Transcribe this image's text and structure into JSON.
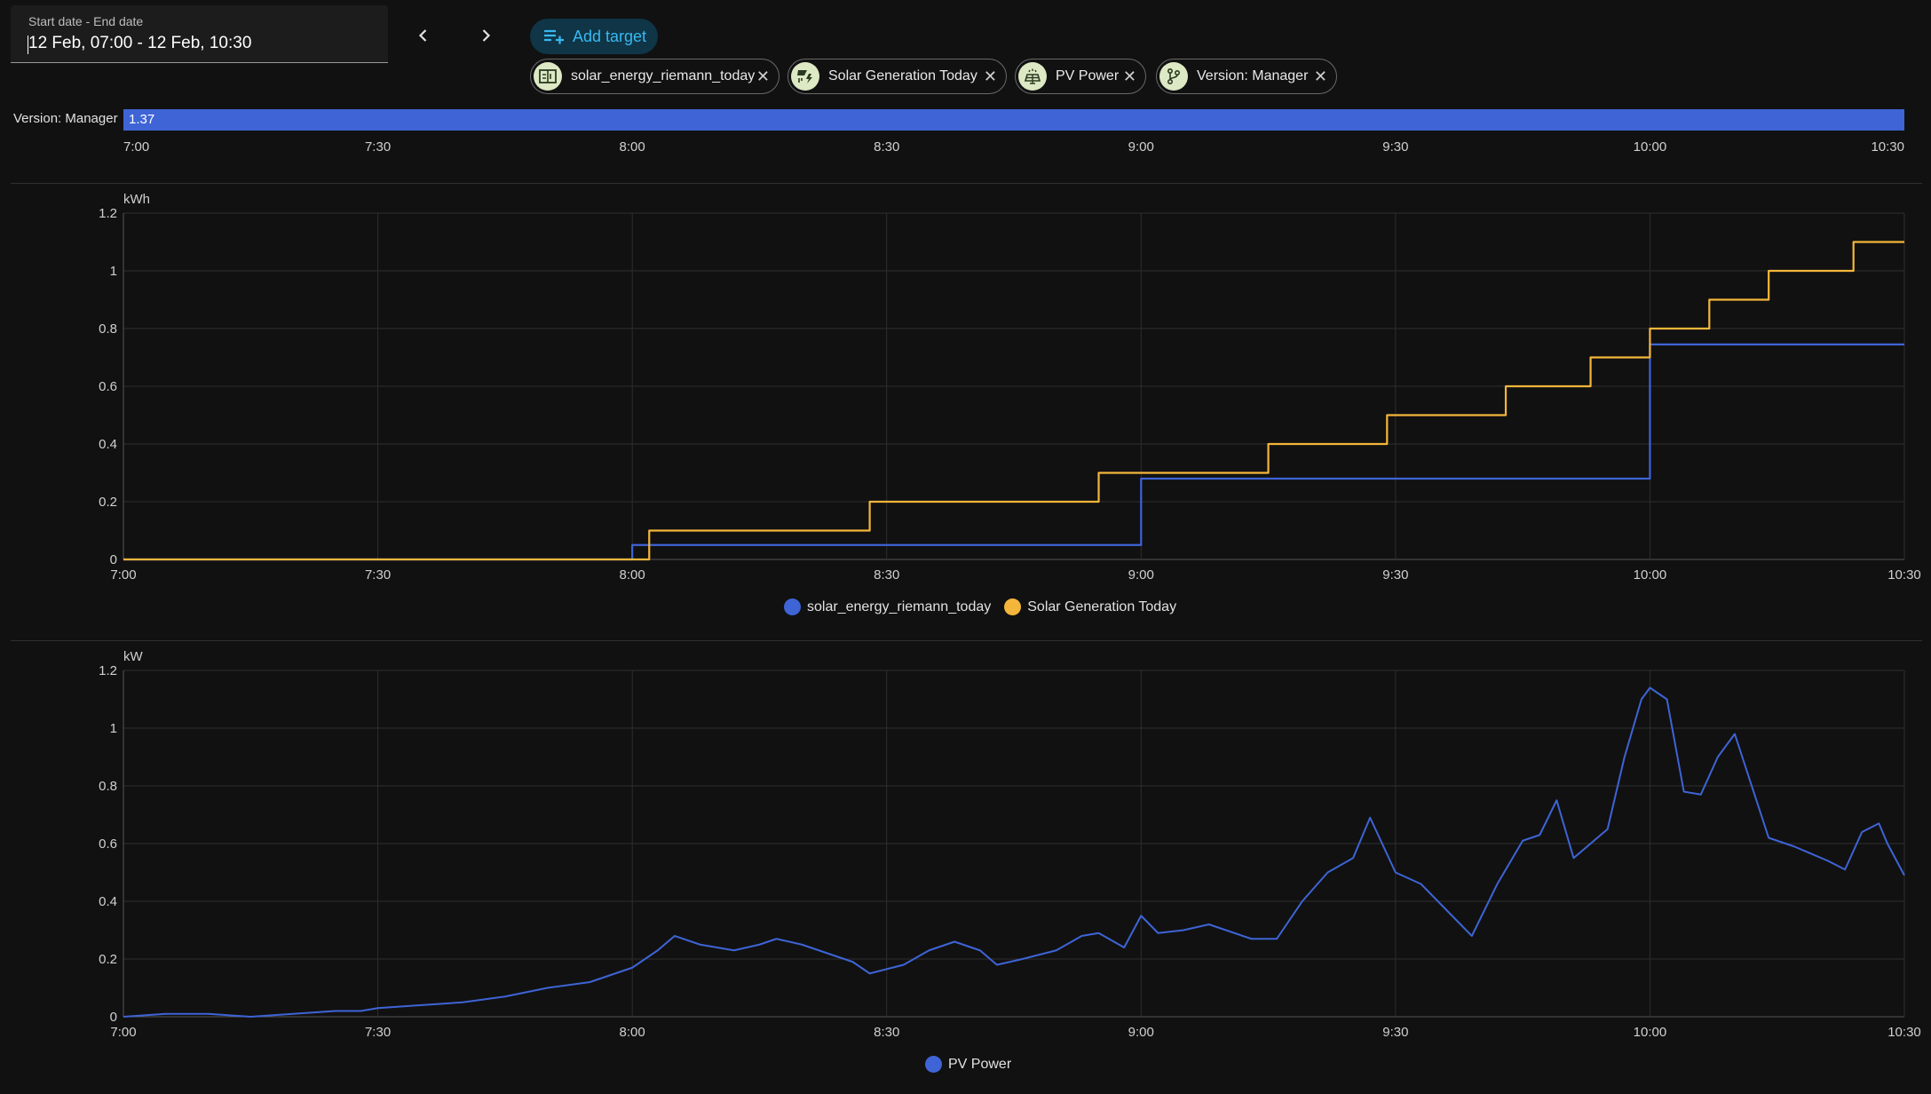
{
  "date_picker": {
    "label": "Start date - End date",
    "value": "12 Feb, 07:00 - 12 Feb, 10:30"
  },
  "toolbar": {
    "add_target_label": "Add target",
    "prev_icon": "chevron-left-icon",
    "next_icon": "chevron-right-icon"
  },
  "targets": [
    {
      "label": "solar_energy_riemann_today",
      "icon": "meter-icon"
    },
    {
      "label": "Solar Generation Today",
      "icon": "solar-power-icon"
    },
    {
      "label": "PV Power",
      "icon": "solar-panel-icon"
    },
    {
      "label": "Version: Manager",
      "icon": "branch-icon"
    }
  ],
  "timeline": {
    "label": "Version: Manager",
    "value": "1.37",
    "color": "#3e64d6",
    "ticks": [
      "7:00",
      "7:30",
      "8:00",
      "8:30",
      "9:00",
      "9:30",
      "10:00",
      "10:30"
    ]
  },
  "colors": {
    "blue": "#3e64d6",
    "yellow": "#f4b63a",
    "accent": "#38b9f0"
  },
  "chart_data": [
    {
      "type": "line",
      "step": true,
      "unit": "kWh",
      "xlim": [
        "7:00",
        "10:30"
      ],
      "ylim": [
        0,
        1.2
      ],
      "x_ticks": [
        "7:00",
        "7:30",
        "8:00",
        "8:30",
        "9:00",
        "9:30",
        "10:00",
        "10:30"
      ],
      "y_ticks": [
        "0",
        "0.2",
        "0.4",
        "0.6",
        "0.8",
        "1",
        "1.2"
      ],
      "grid": true,
      "legend_position": "bottom",
      "series": [
        {
          "name": "solar_energy_riemann_today",
          "color": "#3e64d6",
          "points": [
            [
              "7:00",
              0
            ],
            [
              "8:00",
              0.05
            ],
            [
              "9:00",
              0.28
            ],
            [
              "10:00",
              0.745
            ],
            [
              "10:30",
              0.745
            ]
          ]
        },
        {
          "name": "Solar Generation Today",
          "color": "#f4b63a",
          "points": [
            [
              "7:00",
              0
            ],
            [
              "8:02",
              0.1
            ],
            [
              "8:28",
              0.2
            ],
            [
              "8:55",
              0.3
            ],
            [
              "9:15",
              0.4
            ],
            [
              "9:29",
              0.5
            ],
            [
              "9:43",
              0.6
            ],
            [
              "9:53",
              0.7
            ],
            [
              "10:00",
              0.8
            ],
            [
              "10:07",
              0.9
            ],
            [
              "10:14",
              1.0
            ],
            [
              "10:24",
              1.1
            ],
            [
              "10:30",
              1.1
            ]
          ]
        }
      ]
    },
    {
      "type": "line",
      "unit": "kW",
      "xlim": [
        "7:00",
        "10:30"
      ],
      "ylim": [
        0,
        1.2
      ],
      "x_ticks": [
        "7:00",
        "7:30",
        "8:00",
        "8:30",
        "9:00",
        "9:30",
        "10:00",
        "10:30"
      ],
      "y_ticks": [
        "0",
        "0.2",
        "0.4",
        "0.6",
        "0.8",
        "1",
        "1.2"
      ],
      "grid": true,
      "legend_position": "bottom",
      "series": [
        {
          "name": "PV Power",
          "color": "#3e64d6",
          "points": [
            [
              "7:00",
              0.0
            ],
            [
              "7:05",
              0.01
            ],
            [
              "7:10",
              0.01
            ],
            [
              "7:15",
              0.0
            ],
            [
              "7:20",
              0.01
            ],
            [
              "7:25",
              0.02
            ],
            [
              "7:28",
              0.02
            ],
            [
              "7:30",
              0.03
            ],
            [
              "7:35",
              0.04
            ],
            [
              "7:40",
              0.05
            ],
            [
              "7:45",
              0.07
            ],
            [
              "7:50",
              0.1
            ],
            [
              "7:55",
              0.12
            ],
            [
              "7:58",
              0.15
            ],
            [
              "8:00",
              0.17
            ],
            [
              "8:03",
              0.23
            ],
            [
              "8:05",
              0.28
            ],
            [
              "8:08",
              0.25
            ],
            [
              "8:12",
              0.23
            ],
            [
              "8:15",
              0.25
            ],
            [
              "8:17",
              0.27
            ],
            [
              "8:20",
              0.25
            ],
            [
              "8:23",
              0.22
            ],
            [
              "8:26",
              0.19
            ],
            [
              "8:28",
              0.15
            ],
            [
              "8:32",
              0.18
            ],
            [
              "8:35",
              0.23
            ],
            [
              "8:38",
              0.26
            ],
            [
              "8:41",
              0.23
            ],
            [
              "8:43",
              0.18
            ],
            [
              "8:46",
              0.2
            ],
            [
              "8:50",
              0.23
            ],
            [
              "8:53",
              0.28
            ],
            [
              "8:55",
              0.29
            ],
            [
              "8:58",
              0.24
            ],
            [
              "9:00",
              0.35
            ],
            [
              "9:02",
              0.29
            ],
            [
              "9:05",
              0.3
            ],
            [
              "9:08",
              0.32
            ],
            [
              "9:10",
              0.3
            ],
            [
              "9:13",
              0.27
            ],
            [
              "9:16",
              0.27
            ],
            [
              "9:19",
              0.4
            ],
            [
              "9:22",
              0.5
            ],
            [
              "9:25",
              0.55
            ],
            [
              "9:27",
              0.69
            ],
            [
              "9:30",
              0.5
            ],
            [
              "9:33",
              0.46
            ],
            [
              "9:36",
              0.37
            ],
            [
              "9:39",
              0.28
            ],
            [
              "9:42",
              0.46
            ],
            [
              "9:45",
              0.61
            ],
            [
              "9:47",
              0.63
            ],
            [
              "9:49",
              0.75
            ],
            [
              "9:51",
              0.55
            ],
            [
              "9:53",
              0.6
            ],
            [
              "9:55",
              0.65
            ],
            [
              "9:57",
              0.9
            ],
            [
              "9:59",
              1.1
            ],
            [
              "10:00",
              1.14
            ],
            [
              "10:02",
              1.1
            ],
            [
              "10:04",
              0.78
            ],
            [
              "10:06",
              0.77
            ],
            [
              "10:08",
              0.9
            ],
            [
              "10:10",
              0.98
            ],
            [
              "10:12",
              0.8
            ],
            [
              "10:14",
              0.62
            ],
            [
              "10:17",
              0.59
            ],
            [
              "10:21",
              0.54
            ],
            [
              "10:23",
              0.51
            ],
            [
              "10:25",
              0.64
            ],
            [
              "10:27",
              0.67
            ],
            [
              "10:28",
              0.6
            ],
            [
              "10:30",
              0.49
            ]
          ]
        }
      ]
    }
  ]
}
